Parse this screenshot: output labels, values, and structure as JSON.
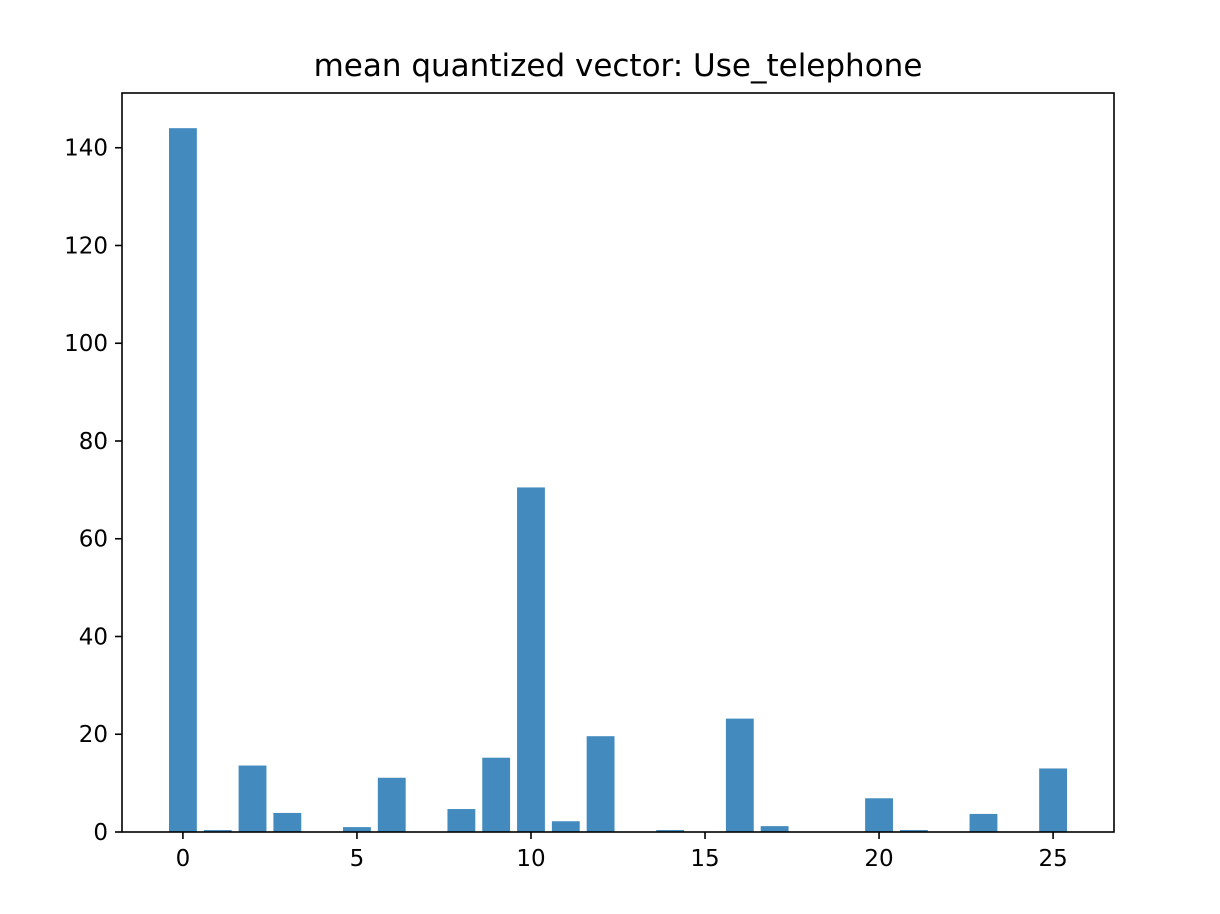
{
  "chart_data": {
    "type": "bar",
    "title": "mean quantized vector: Use_telephone",
    "xlabel": "",
    "ylabel": "",
    "x": [
      0,
      1,
      2,
      3,
      4,
      5,
      6,
      7,
      8,
      9,
      10,
      11,
      12,
      13,
      14,
      15,
      16,
      17,
      18,
      19,
      20,
      21,
      22,
      23,
      24,
      25
    ],
    "values": [
      144,
      0.4,
      13.6,
      3.9,
      0,
      1.0,
      11.1,
      0,
      4.7,
      15.2,
      70.5,
      2.2,
      19.6,
      0,
      0.4,
      0,
      23.2,
      1.2,
      0,
      0,
      6.9,
      0.4,
      0,
      3.7,
      0,
      13.0
    ],
    "xlim": [
      -1.75,
      26.75
    ],
    "ylim": [
      0,
      151.2
    ],
    "xticks": [
      0,
      5,
      10,
      15,
      20,
      25
    ],
    "xtick_labels": [
      "0",
      "5",
      "10",
      "15",
      "20",
      "25"
    ],
    "yticks": [
      0,
      20,
      40,
      60,
      80,
      100,
      120,
      140
    ],
    "ytick_labels": [
      "0",
      "20",
      "40",
      "60",
      "80",
      "100",
      "120",
      "140"
    ],
    "bar_color": "#438bbe",
    "grid": false,
    "legend": "none"
  }
}
